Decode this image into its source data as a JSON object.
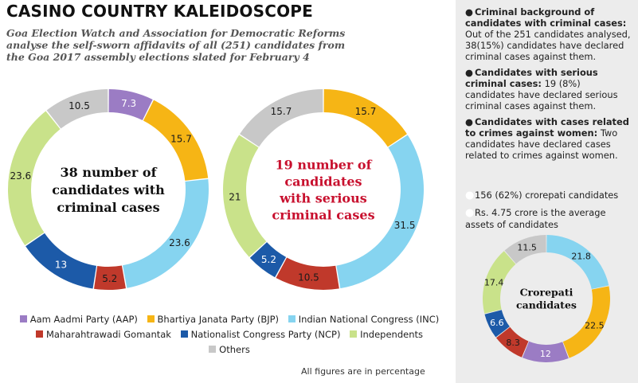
{
  "header": {
    "title": "CASINO COUNTRY KALEIDOSCOPE",
    "subtitle": "Goa Election Watch and Association for Democratic Reforms analyse the self-sworn affidavits of all (251) candidates from the Goa 2017 assembly elections slated for February 4"
  },
  "colors": {
    "AAP": "#9b7cc4",
    "BJP": "#f6b515",
    "INC": "#86d4f0",
    "MGP": "#c0392b",
    "NCP": "#1c5aa8",
    "Independents": "#c9e28a",
    "Others": "#c8c8c8",
    "criminal_center_text": "#111111",
    "serious_center_text": "#c8102e"
  },
  "chart_data": [
    {
      "type": "pie",
      "center_label": "38 number of candidates with criminal cases",
      "categories": [
        "Aam Aadmi Party (AAP)",
        "Bhartiya Janata Party (BJP)",
        "Indian National Congress (INC)",
        "Maharahtrawadi Gomantak",
        "Nationalist Congress Party (NCP)",
        "Independents",
        "Others"
      ],
      "keys": [
        "AAP",
        "BJP",
        "INC",
        "MGP",
        "NCP",
        "Independents",
        "Others"
      ],
      "values": [
        7.3,
        15.7,
        23.6,
        5.2,
        13,
        23.6,
        10.5
      ],
      "labels": [
        "7.3",
        "15.7",
        "23.6",
        "5.2",
        "13",
        "23.6",
        "10.5"
      ]
    },
    {
      "type": "pie",
      "center_label": "19 number of candidates with serious criminal cases",
      "categories": [
        "Bhartiya Janata Party (BJP)",
        "Indian National Congress (INC)",
        "Maharahtrawadi Gomantak",
        "Nationalist Congress Party (NCP)",
        "Independents",
        "Others"
      ],
      "keys": [
        "BJP",
        "INC",
        "MGP",
        "NCP",
        "Independents",
        "Others"
      ],
      "values": [
        15.7,
        31.5,
        10.5,
        5.2,
        21,
        15.7
      ],
      "labels": [
        "15.7",
        "31.5",
        "10.5",
        "5.2",
        "21",
        "15.7"
      ]
    },
    {
      "type": "pie",
      "center_label": "Crorepati candidates",
      "categories": [
        "Indian National Congress (INC)",
        "Bhartiya Janata Party (BJP)",
        "Aam Aadmi Party (AAP)",
        "Maharahtrawadi Gomantak",
        "Nationalist Congress Party (NCP)",
        "Independents",
        "Others"
      ],
      "keys": [
        "INC",
        "BJP",
        "AAP",
        "MGP",
        "NCP",
        "Independents",
        "Others"
      ],
      "values": [
        21.8,
        22.5,
        12,
        8.3,
        6.6,
        17.4,
        11.5
      ],
      "labels": [
        "21.8",
        "22.5",
        "12",
        "8.3",
        "6.6",
        "17.4",
        "11.5"
      ]
    }
  ],
  "legend": [
    {
      "key": "AAP",
      "label": "Aam Aadmi Party (AAP)"
    },
    {
      "key": "BJP",
      "label": "Bhartiya Janata Party (BJP)"
    },
    {
      "key": "INC",
      "label": "Indian National Congress (INC)"
    },
    {
      "key": "MGP",
      "label": "Maharahtrawadi Gomantak"
    },
    {
      "key": "NCP",
      "label": "Nationalist Congress Party (NCP)"
    },
    {
      "key": "Independents",
      "label": "Independents"
    },
    {
      "key": "Others",
      "label": "Others"
    }
  ],
  "footnote": "All figures are in percentage",
  "sidebar": {
    "items": [
      {
        "lead": "Criminal background of candidates with criminal cases:",
        "text": "Out of the 251 candidates analysed, 38(15%) candidates have declared criminal cases against them."
      },
      {
        "lead": "Candidates with serious criminal cases:",
        "text": "19 (8%) candidates have declared serious criminal cases against them."
      },
      {
        "lead": "Candidates with cases related to crimes against women:",
        "text": "Two candidates have declared cases related to crimes against women."
      }
    ],
    "crorepati_line": "156 (62%) crorepati candidates",
    "assets_line": "Rs. 4.75 crore is the average assets of candidates"
  }
}
